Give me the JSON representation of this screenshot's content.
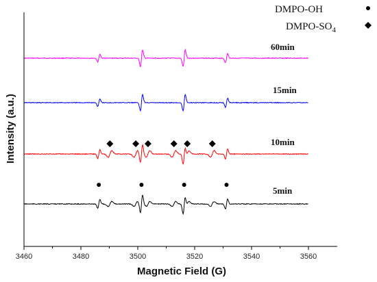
{
  "chart_data": {
    "type": "line",
    "title": "",
    "xlabel": "Magnetic Field (G)",
    "ylabel": "Intensity (a.u.)",
    "xlim": [
      3460,
      3560
    ],
    "xticks": [
      3460,
      3480,
      3500,
      3520,
      3540,
      3560
    ],
    "grid": false,
    "legend": {
      "placement": "top-right",
      "entries": [
        {
          "label": "DMPO-OH",
          "label_main": "DMPO-OH",
          "label_sub": "",
          "marker": "circle"
        },
        {
          "label": "DMPO-SO4",
          "label_main": "DMPO-SO",
          "label_sub": "4",
          "marker": "diamond"
        }
      ]
    },
    "series": [
      {
        "name": "60min",
        "color": "#ff00ff",
        "peaks": [
          3486.3,
          3501.3,
          3516.3,
          3531.2
        ],
        "amplitudes": [
          0.45,
          1.0,
          1.0,
          0.55
        ],
        "so4_amplitude": 0
      },
      {
        "name": "15min",
        "color": "#0000ff",
        "peaks": [
          3486.3,
          3501.3,
          3516.3,
          3531.2
        ],
        "amplitudes": [
          0.45,
          1.0,
          1.0,
          0.55
        ],
        "so4_amplitude": 0
      },
      {
        "name": "10min",
        "color": "#ff0000",
        "peaks": [
          3486.3,
          3501.3,
          3516.3,
          3531.2
        ],
        "amplitudes": [
          0.55,
          1.1,
          1.1,
          0.6
        ],
        "so4_amplitude": 0.4
      },
      {
        "name": "5min",
        "color": "#000000",
        "peaks": [
          3486.3,
          3501.3,
          3516.3,
          3531.2
        ],
        "amplitudes": [
          0.55,
          1.1,
          1.1,
          0.6
        ],
        "so4_amplitude": 0.3
      }
    ],
    "annotations": {
      "dmpo_oh_markers": {
        "series": "5min",
        "x": [
          3486.3,
          3501.3,
          3516.3,
          3531.2
        ]
      },
      "dmpo_so4_markers": {
        "series": "10min",
        "x": [
          3490.2,
          3499.3,
          3503.6,
          3512.7,
          3517.4,
          3526.2
        ]
      }
    }
  }
}
